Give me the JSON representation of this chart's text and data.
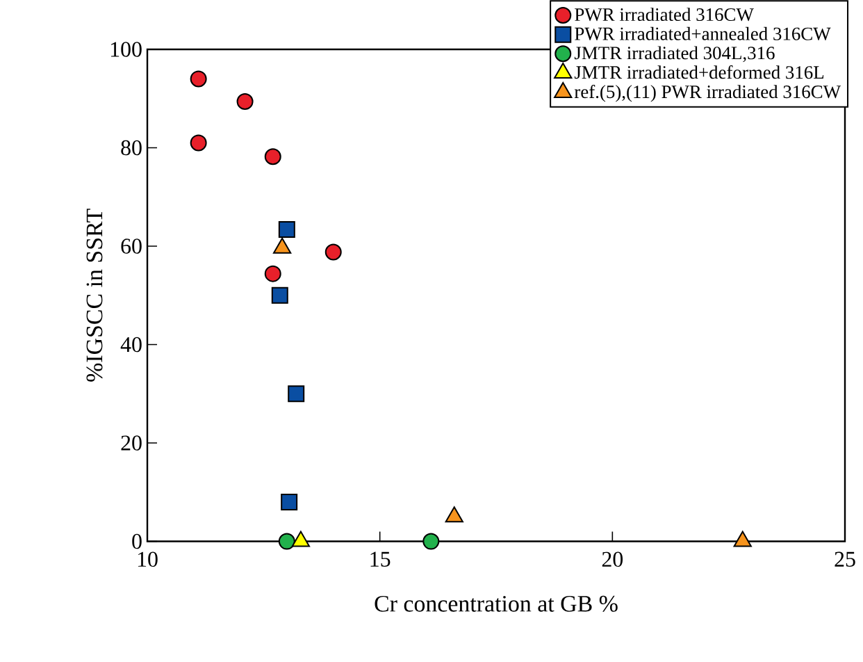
{
  "chart_data": {
    "type": "scatter",
    "xlabel": "Cr concentration at GB %",
    "ylabel": "%IGSCC in SSRT",
    "xlim": [
      10,
      25
    ],
    "ylim": [
      0,
      100
    ],
    "xticks": [
      10,
      15,
      20,
      25
    ],
    "yticks": [
      0,
      20,
      40,
      60,
      80,
      100
    ],
    "grid": false,
    "legend": "top right",
    "series": [
      {
        "name": "PWR irradiated 316CW",
        "color": "#e8202a",
        "marker": "circle",
        "x": [
          11.1,
          12.1,
          11.1,
          12.7,
          14.0,
          12.7
        ],
        "values": [
          94,
          89.4,
          81,
          78.2,
          58.8,
          54.4
        ]
      },
      {
        "name": "PWR irradiated+annealed 316CW",
        "color": "#0a4ea2",
        "marker": "square",
        "x": [
          13.0,
          12.85,
          13.2,
          13.05
        ],
        "values": [
          63.4,
          50,
          30,
          8
        ]
      },
      {
        "name": "JMTR irradiated 304L,316",
        "color": "#22b14c",
        "marker": "circle",
        "x": [
          13.0,
          16.1
        ],
        "values": [
          0,
          0
        ]
      },
      {
        "name": "JMTR irradiated+deformed 316L",
        "color": "#ffff00",
        "marker": "triangle",
        "x": [
          13.3
        ],
        "values": [
          0
        ]
      },
      {
        "name": "ref.(5),(11) PWR irradiated 316CW",
        "color": "#f7941d",
        "marker": "triangle",
        "x": [
          12.9,
          16.6,
          22.8
        ],
        "values": [
          59.6,
          5,
          0
        ]
      }
    ]
  }
}
